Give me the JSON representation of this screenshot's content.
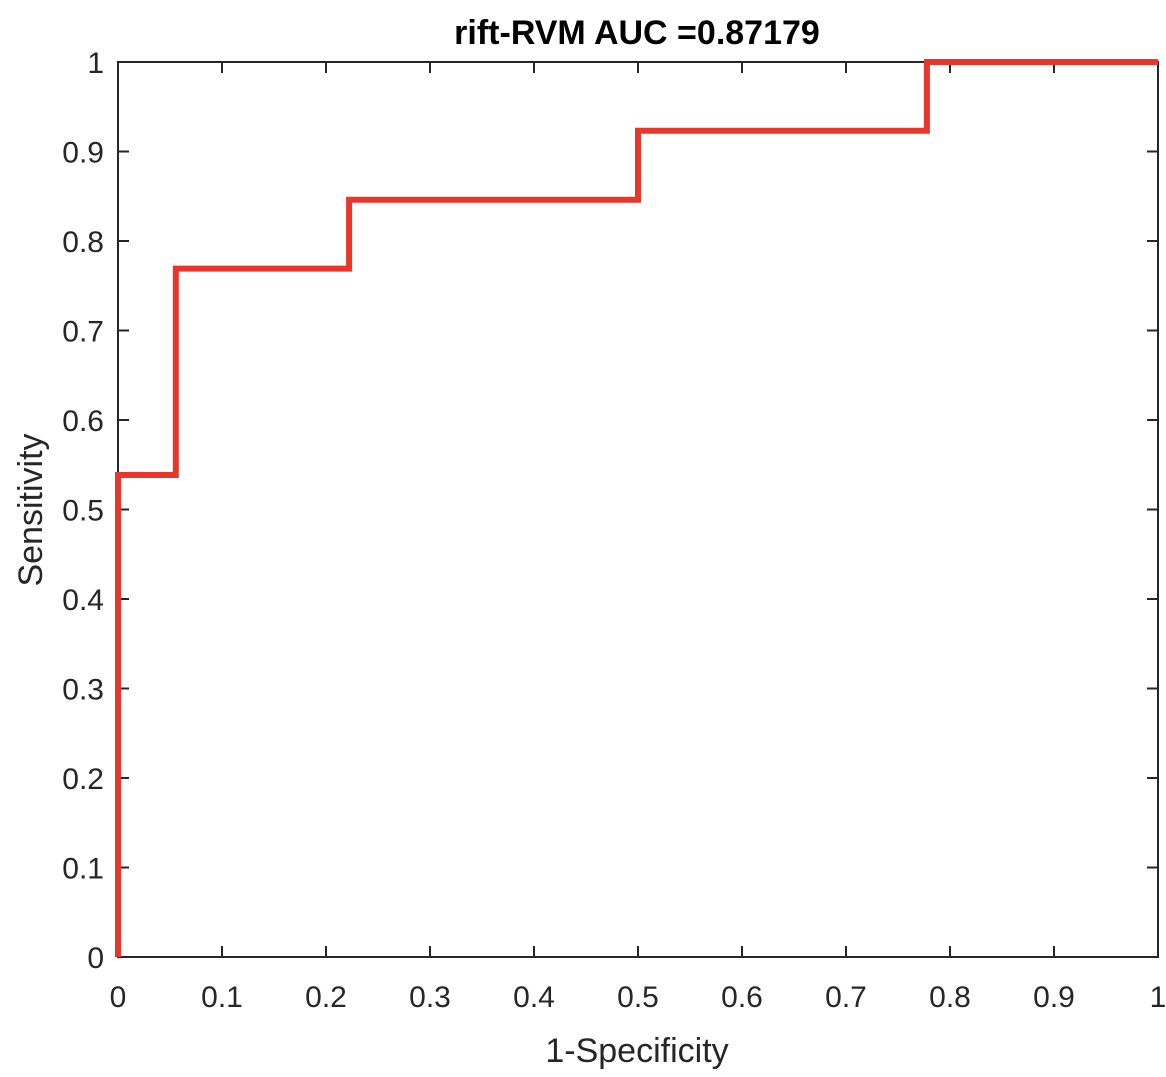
{
  "chart_data": {
    "type": "line",
    "title": "rift-RVM   AUC =0.87179",
    "xlabel": "1-Specificity",
    "ylabel": "Sensitivity",
    "xlim": [
      0,
      1
    ],
    "ylim": [
      0,
      1
    ],
    "x_ticks": [
      "0",
      "0.1",
      "0.2",
      "0.3",
      "0.4",
      "0.5",
      "0.6",
      "0.7",
      "0.8",
      "0.9",
      "1"
    ],
    "y_ticks": [
      "0",
      "0.1",
      "0.2",
      "0.3",
      "0.4",
      "0.5",
      "0.6",
      "0.7",
      "0.8",
      "0.9",
      "1"
    ],
    "grid": false,
    "series": [
      {
        "color": "#e8372a",
        "x": [
          0,
          0,
          0.0556,
          0.0556,
          0.2222,
          0.2222,
          0.5,
          0.5,
          0.7778,
          0.7778,
          1
        ],
        "y": [
          0,
          0.5385,
          0.5385,
          0.7692,
          0.7692,
          0.8462,
          0.8462,
          0.9231,
          0.9231,
          1,
          1
        ]
      }
    ]
  }
}
